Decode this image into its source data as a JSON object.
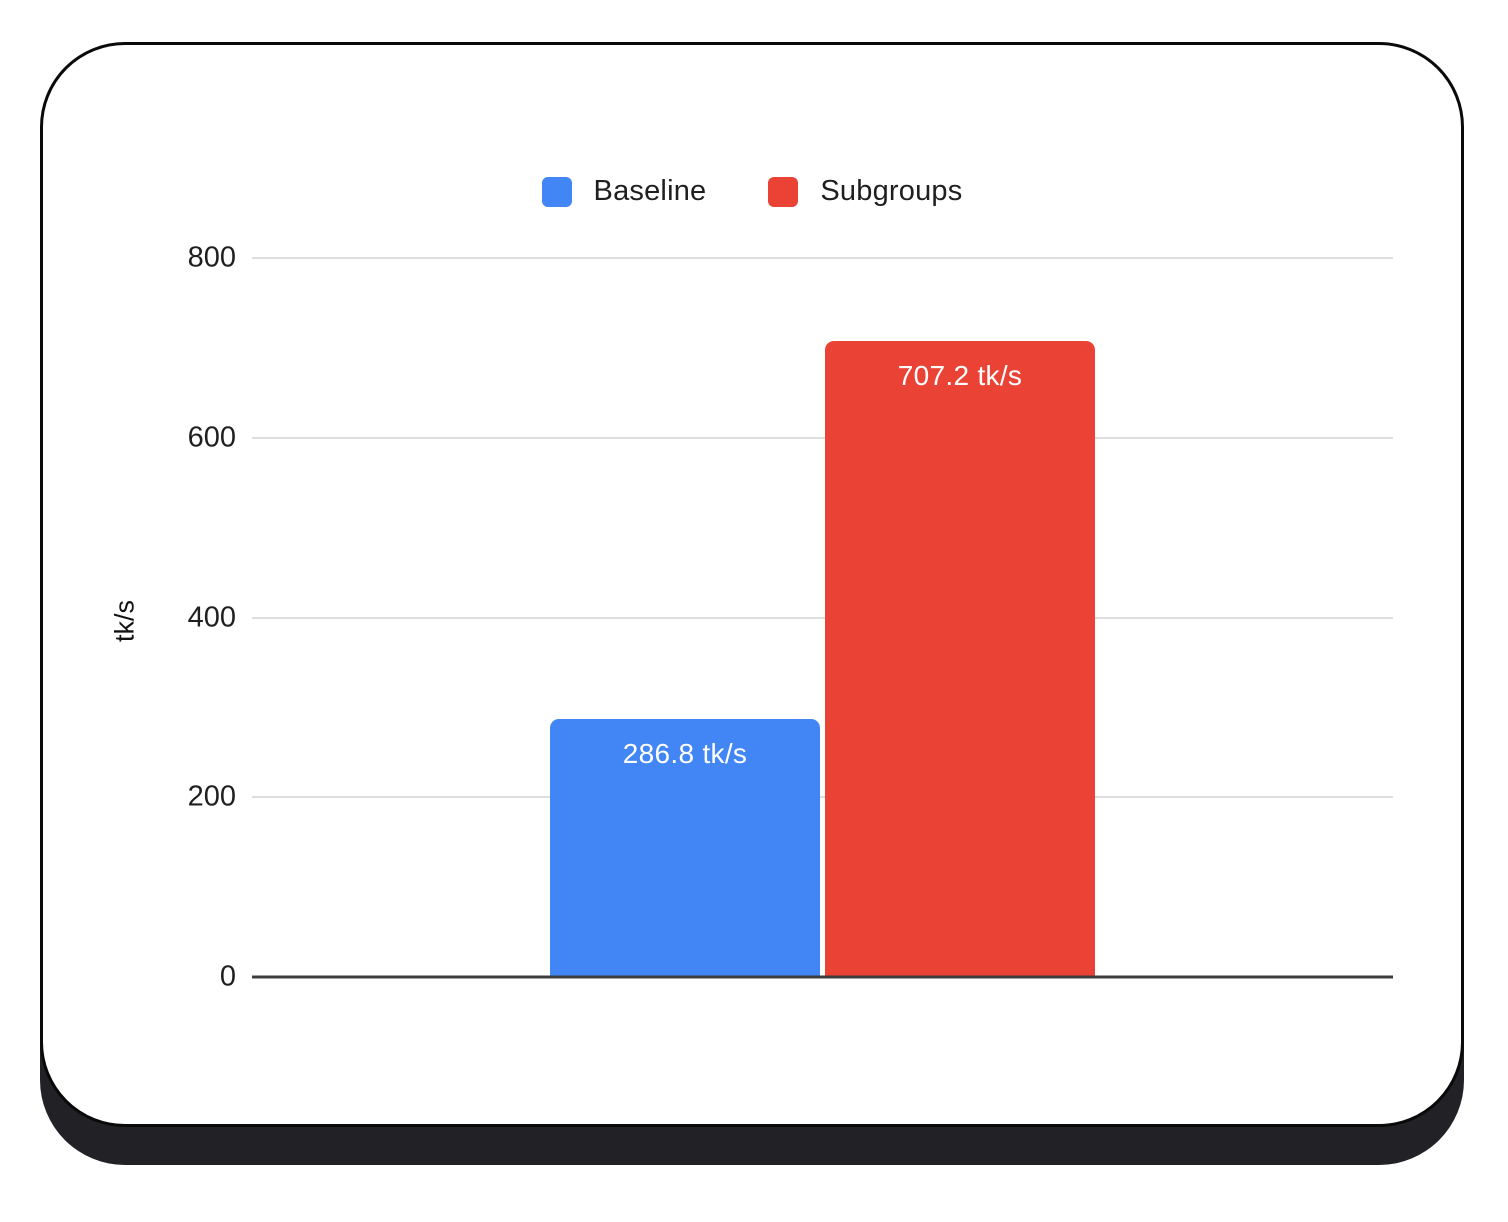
{
  "chart_data": {
    "type": "bar",
    "categories": [
      "Baseline",
      "Subgroups"
    ],
    "series": [
      {
        "name": "Baseline",
        "value": 286.8,
        "label": "286.8 tk/s",
        "color": "#4285F4"
      },
      {
        "name": "Subgroups",
        "value": 707.2,
        "label": "707.2 tk/s",
        "color": "#EA4335"
      }
    ],
    "title": "",
    "xlabel": "",
    "ylabel": "tk/s",
    "ylim": [
      0,
      800
    ],
    "yticks": [
      0,
      200,
      400,
      600,
      800
    ],
    "grid": true,
    "legend_position": "top",
    "colors": {
      "axis_line": "#3c3c3c",
      "gridline": "#dedede",
      "card_shadow": "#212126",
      "card_border": "#0a0a0a"
    }
  }
}
